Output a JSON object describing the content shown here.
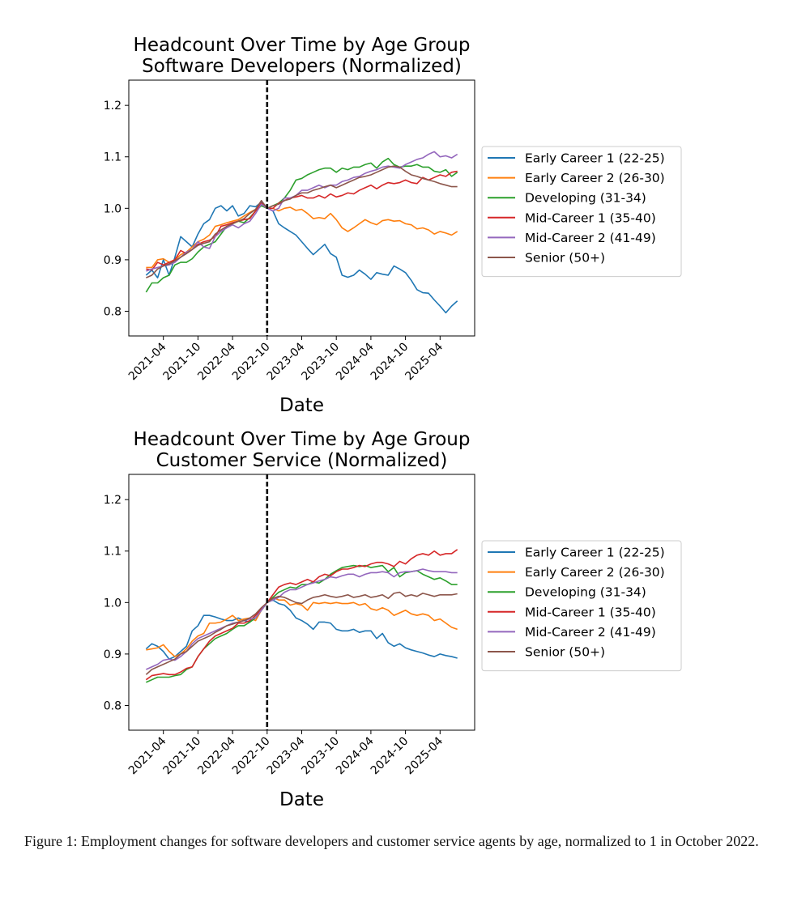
{
  "chart_data": [
    {
      "type": "line",
      "title": "Headcount Over Time by Age Group",
      "subtitle": "Software Developers (Normalized)",
      "xlabel": "Date",
      "x": [
        "2021-01",
        "2021-02",
        "2021-03",
        "2021-04",
        "2021-05",
        "2021-06",
        "2021-07",
        "2021-08",
        "2021-09",
        "2021-10",
        "2021-11",
        "2021-12",
        "2022-01",
        "2022-02",
        "2022-03",
        "2022-04",
        "2022-05",
        "2022-06",
        "2022-07",
        "2022-08",
        "2022-09",
        "2022-10",
        "2022-11",
        "2022-12",
        "2023-01",
        "2023-02",
        "2023-03",
        "2023-04",
        "2023-05",
        "2023-06",
        "2023-07",
        "2023-08",
        "2023-09",
        "2023-10",
        "2023-11",
        "2023-12",
        "2024-01",
        "2024-02",
        "2024-03",
        "2024-04",
        "2024-05",
        "2024-06",
        "2024-07",
        "2024-08",
        "2024-09",
        "2024-10",
        "2024-11",
        "2024-12",
        "2025-01",
        "2025-02",
        "2025-03",
        "2025-04",
        "2025-05",
        "2025-06",
        "2025-07"
      ],
      "xlim": [
        "2020-10",
        "2025-10"
      ],
      "xticks": [
        "2021-04",
        "2021-10",
        "2022-04",
        "2022-10",
        "2023-04",
        "2023-10",
        "2024-04",
        "2024-10",
        "2025-04"
      ],
      "ylim": [
        0.752,
        1.249
      ],
      "yticks": [
        0.8,
        0.9,
        {
          "value": 1,
          "label": "1.0"
        },
        1.1,
        1.2
      ],
      "grid": false,
      "vline": "2022-10",
      "legend": "outside right",
      "series": [
        {
          "name": "Early Career 1 (22-25)",
          "color": "#1f77b4",
          "values": [
            0.87,
            0.88,
            0.865,
            0.9,
            0.87,
            0.905,
            0.945,
            0.935,
            0.925,
            0.95,
            0.97,
            0.978,
            1.0,
            1.005,
            0.995,
            1.005,
            0.985,
            0.99,
            1.005,
            1.003,
            1.012,
            1.0,
            0.995,
            0.97,
            0.962,
            0.955,
            0.948,
            0.935,
            0.922,
            0.91,
            0.92,
            0.93,
            0.912,
            0.905,
            0.87,
            0.866,
            0.87,
            0.88,
            0.872,
            0.862,
            0.875,
            0.872,
            0.87,
            0.888,
            0.882,
            0.875,
            0.86,
            0.842,
            0.836,
            0.835,
            0.822,
            0.81,
            0.797,
            0.81,
            0.82
          ]
        },
        {
          "name": "Early Career 2 (26-30)",
          "color": "#ff7f0e",
          "values": [
            0.885,
            0.885,
            0.9,
            0.902,
            0.895,
            0.9,
            0.91,
            0.915,
            0.925,
            0.935,
            0.94,
            0.948,
            0.965,
            0.968,
            0.972,
            0.975,
            0.978,
            0.985,
            0.992,
            0.998,
            1.005,
            1.0,
            1.0,
            0.995,
            1.0,
            1.002,
            0.996,
            0.998,
            0.99,
            0.98,
            0.982,
            0.98,
            0.99,
            0.978,
            0.962,
            0.955,
            0.962,
            0.97,
            0.978,
            0.972,
            0.968,
            0.976,
            0.978,
            0.975,
            0.976,
            0.97,
            0.968,
            0.96,
            0.962,
            0.958,
            0.95,
            0.955,
            0.952,
            0.948,
            0.955
          ]
        },
        {
          "name": "Developing (31-34)",
          "color": "#2ca02c",
          "values": [
            0.837,
            0.855,
            0.855,
            0.865,
            0.87,
            0.89,
            0.895,
            0.895,
            0.902,
            0.915,
            0.925,
            0.93,
            0.935,
            0.95,
            0.965,
            0.97,
            0.975,
            0.972,
            0.982,
            0.995,
            1.005,
            1.0,
            1.005,
            1.01,
            1.02,
            1.035,
            1.055,
            1.058,
            1.065,
            1.07,
            1.075,
            1.078,
            1.078,
            1.07,
            1.078,
            1.075,
            1.08,
            1.08,
            1.085,
            1.088,
            1.078,
            1.09,
            1.097,
            1.085,
            1.08,
            1.082,
            1.082,
            1.085,
            1.08,
            1.08,
            1.072,
            1.07,
            1.075,
            1.062,
            1.07
          ]
        },
        {
          "name": "Mid-Career 1 (35-40)",
          "color": "#d62728",
          "values": [
            0.882,
            0.88,
            0.895,
            0.89,
            0.895,
            0.9,
            0.918,
            0.912,
            0.92,
            0.93,
            0.935,
            0.938,
            0.945,
            0.965,
            0.968,
            0.972,
            0.975,
            0.978,
            0.98,
            0.995,
            1.01,
            1.0,
            1.0,
            1.01,
            1.015,
            1.02,
            1.022,
            1.025,
            1.02,
            1.02,
            1.025,
            1.02,
            1.028,
            1.022,
            1.025,
            1.03,
            1.028,
            1.035,
            1.04,
            1.045,
            1.038,
            1.045,
            1.05,
            1.048,
            1.05,
            1.055,
            1.05,
            1.048,
            1.06,
            1.055,
            1.06,
            1.065,
            1.062,
            1.07,
            1.072
          ]
        },
        {
          "name": "Mid-Career 2 (41-49)",
          "color": "#9467bd",
          "values": [
            0.878,
            0.882,
            0.885,
            0.888,
            0.89,
            0.895,
            0.905,
            0.915,
            0.92,
            0.935,
            0.925,
            0.922,
            0.945,
            0.955,
            0.962,
            0.968,
            0.962,
            0.97,
            0.975,
            0.99,
            1.008,
            1.0,
            0.995,
            1.0,
            1.02,
            1.02,
            1.025,
            1.035,
            1.035,
            1.04,
            1.045,
            1.04,
            1.045,
            1.045,
            1.052,
            1.055,
            1.06,
            1.062,
            1.068,
            1.072,
            1.075,
            1.08,
            1.082,
            1.08,
            1.078,
            1.085,
            1.09,
            1.095,
            1.098,
            1.105,
            1.11,
            1.1,
            1.102,
            1.098,
            1.105
          ]
        },
        {
          "name": "Senior (50+)",
          "color": "#8c564b",
          "values": [
            0.865,
            0.87,
            0.882,
            0.888,
            0.892,
            0.898,
            0.905,
            0.912,
            0.92,
            0.928,
            0.932,
            0.935,
            0.95,
            0.958,
            0.965,
            0.97,
            0.975,
            0.98,
            0.99,
            0.998,
            1.015,
            1.0,
            1.005,
            1.008,
            1.015,
            1.018,
            1.025,
            1.03,
            1.03,
            1.035,
            1.038,
            1.042,
            1.045,
            1.04,
            1.045,
            1.05,
            1.055,
            1.06,
            1.062,
            1.065,
            1.07,
            1.075,
            1.08,
            1.082,
            1.08,
            1.072,
            1.065,
            1.062,
            1.058,
            1.055,
            1.052,
            1.048,
            1.045,
            1.042,
            1.042
          ]
        }
      ]
    },
    {
      "type": "line",
      "title": "Headcount Over Time by Age Group",
      "subtitle": "Customer Service (Normalized)",
      "xlabel": "Date",
      "x": [
        "2021-01",
        "2021-02",
        "2021-03",
        "2021-04",
        "2021-05",
        "2021-06",
        "2021-07",
        "2021-08",
        "2021-09",
        "2021-10",
        "2021-11",
        "2021-12",
        "2022-01",
        "2022-02",
        "2022-03",
        "2022-04",
        "2022-05",
        "2022-06",
        "2022-07",
        "2022-08",
        "2022-09",
        "2022-10",
        "2022-11",
        "2022-12",
        "2023-01",
        "2023-02",
        "2023-03",
        "2023-04",
        "2023-05",
        "2023-06",
        "2023-07",
        "2023-08",
        "2023-09",
        "2023-10",
        "2023-11",
        "2023-12",
        "2024-01",
        "2024-02",
        "2024-03",
        "2024-04",
        "2024-05",
        "2024-06",
        "2024-07",
        "2024-08",
        "2024-09",
        "2024-10",
        "2024-11",
        "2024-12",
        "2025-01",
        "2025-02",
        "2025-03",
        "2025-04",
        "2025-05",
        "2025-06",
        "2025-07"
      ],
      "xlim": [
        "2020-10",
        "2025-10"
      ],
      "xticks": [
        "2021-04",
        "2021-10",
        "2022-04",
        "2022-10",
        "2023-04",
        "2023-10",
        "2024-04",
        "2024-10",
        "2025-04"
      ],
      "ylim": [
        0.752,
        1.249
      ],
      "yticks": [
        0.8,
        0.9,
        {
          "value": 1,
          "label": "1.0"
        },
        1.1,
        1.2
      ],
      "grid": false,
      "vline": "2022-10",
      "legend": "outside right",
      "series": [
        {
          "name": "Early Career 1 (22-25)",
          "color": "#1f77b4",
          "values": [
            0.91,
            0.92,
            0.915,
            0.905,
            0.89,
            0.895,
            0.905,
            0.915,
            0.945,
            0.955,
            0.975,
            0.975,
            0.972,
            0.968,
            0.965,
            0.965,
            0.97,
            0.965,
            0.962,
            0.975,
            0.985,
            1.0,
            1.005,
            0.998,
            0.995,
            0.985,
            0.97,
            0.965,
            0.958,
            0.948,
            0.962,
            0.962,
            0.96,
            0.948,
            0.945,
            0.945,
            0.948,
            0.942,
            0.945,
            0.945,
            0.93,
            0.94,
            0.922,
            0.915,
            0.92,
            0.912,
            0.908,
            0.905,
            0.902,
            0.898,
            0.895,
            0.9,
            0.897,
            0.895,
            0.892
          ]
        },
        {
          "name": "Early Career 2 (26-30)",
          "color": "#ff7f0e",
          "values": [
            0.908,
            0.91,
            0.912,
            0.918,
            0.905,
            0.895,
            0.9,
            0.91,
            0.925,
            0.935,
            0.94,
            0.96,
            0.96,
            0.962,
            0.968,
            0.975,
            0.965,
            0.968,
            0.97,
            0.965,
            0.985,
            1.0,
            1.01,
            1.005,
            1.005,
            0.995,
            0.998,
            0.995,
            0.985,
            1.0,
            0.998,
            1.0,
            0.998,
            1.0,
            0.998,
            0.998,
            1.0,
            0.995,
            0.998,
            0.988,
            0.985,
            0.99,
            0.985,
            0.975,
            0.98,
            0.985,
            0.978,
            0.975,
            0.978,
            0.975,
            0.965,
            0.968,
            0.96,
            0.952,
            0.948
          ]
        },
        {
          "name": "Developing (31-34)",
          "color": "#2ca02c",
          "values": [
            0.845,
            0.85,
            0.855,
            0.855,
            0.855,
            0.858,
            0.86,
            0.87,
            0.875,
            0.895,
            0.91,
            0.92,
            0.93,
            0.935,
            0.94,
            0.948,
            0.955,
            0.955,
            0.962,
            0.97,
            0.985,
            1.0,
            1.01,
            1.02,
            1.025,
            1.03,
            1.028,
            1.035,
            1.035,
            1.04,
            1.038,
            1.045,
            1.055,
            1.062,
            1.068,
            1.07,
            1.072,
            1.07,
            1.072,
            1.068,
            1.07,
            1.072,
            1.06,
            1.068,
            1.05,
            1.058,
            1.06,
            1.062,
            1.055,
            1.05,
            1.045,
            1.048,
            1.042,
            1.035,
            1.035
          ]
        },
        {
          "name": "Mid-Career 1 (35-40)",
          "color": "#d62728",
          "values": [
            0.85,
            0.858,
            0.86,
            0.862,
            0.86,
            0.86,
            0.865,
            0.872,
            0.875,
            0.895,
            0.91,
            0.925,
            0.935,
            0.94,
            0.945,
            0.95,
            0.96,
            0.96,
            0.965,
            0.975,
            0.988,
            1.0,
            1.015,
            1.03,
            1.035,
            1.038,
            1.035,
            1.04,
            1.045,
            1.04,
            1.05,
            1.055,
            1.052,
            1.06,
            1.065,
            1.065,
            1.068,
            1.072,
            1.07,
            1.075,
            1.078,
            1.078,
            1.075,
            1.07,
            1.08,
            1.075,
            1.085,
            1.092,
            1.095,
            1.092,
            1.1,
            1.092,
            1.095,
            1.095,
            1.103
          ]
        },
        {
          "name": "Mid-Career 2 (41-49)",
          "color": "#9467bd",
          "values": [
            0.87,
            0.875,
            0.88,
            0.888,
            0.89,
            0.888,
            0.895,
            0.905,
            0.92,
            0.93,
            0.935,
            0.94,
            0.945,
            0.95,
            0.955,
            0.96,
            0.962,
            0.965,
            0.968,
            0.97,
            0.985,
            1.0,
            1.005,
            1.01,
            1.02,
            1.025,
            1.025,
            1.03,
            1.035,
            1.038,
            1.042,
            1.045,
            1.05,
            1.048,
            1.052,
            1.055,
            1.055,
            1.05,
            1.055,
            1.058,
            1.058,
            1.06,
            1.058,
            1.05,
            1.058,
            1.06,
            1.06,
            1.062,
            1.065,
            1.062,
            1.06,
            1.06,
            1.06,
            1.058,
            1.058
          ]
        },
        {
          "name": "Senior (50+)",
          "color": "#8c564b",
          "values": [
            0.86,
            0.87,
            0.875,
            0.88,
            0.885,
            0.89,
            0.9,
            0.905,
            0.915,
            0.925,
            0.93,
            0.935,
            0.942,
            0.948,
            0.955,
            0.958,
            0.962,
            0.965,
            0.97,
            0.978,
            0.99,
            1.0,
            1.008,
            1.012,
            1.01,
            1.005,
            1.0,
            0.998,
            1.005,
            1.01,
            1.012,
            1.015,
            1.012,
            1.01,
            1.012,
            1.015,
            1.01,
            1.012,
            1.015,
            1.01,
            1.012,
            1.015,
            1.008,
            1.018,
            1.02,
            1.012,
            1.015,
            1.012,
            1.018,
            1.015,
            1.012,
            1.015,
            1.015,
            1.015,
            1.017
          ]
        }
      ]
    }
  ],
  "caption": "Figure 1: Employment changes for software developers and customer service agents by age, normalized to 1 in October 2022."
}
